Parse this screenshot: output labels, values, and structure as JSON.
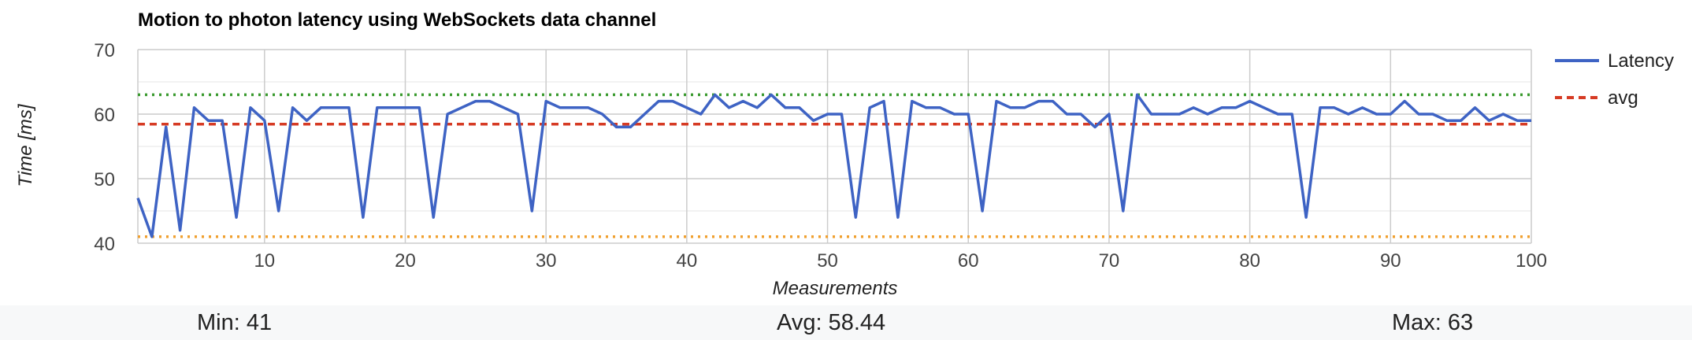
{
  "chart_data": {
    "type": "line",
    "title": "Motion to photon latency using WebSockets data channel",
    "xlabel": "Measurements",
    "ylabel": "Time [ms]",
    "xlim": [
      1,
      100
    ],
    "ylim": [
      40,
      70
    ],
    "x_ticks": [
      10,
      20,
      30,
      40,
      50,
      60,
      70,
      80,
      90,
      100
    ],
    "y_ticks": [
      40,
      50,
      60,
      70
    ],
    "grid": true,
    "legend_position": "right",
    "series": [
      {
        "name": "Latency",
        "color": "#3e63c4",
        "style": "solid",
        "values": [
          47,
          41,
          58,
          42,
          61,
          59,
          59,
          44,
          61,
          59,
          45,
          61,
          59,
          61,
          61,
          61,
          44,
          61,
          61,
          61,
          61,
          44,
          60,
          61,
          62,
          62,
          61,
          60,
          45,
          62,
          61,
          61,
          61,
          60,
          58,
          58,
          60,
          62,
          62,
          61,
          60,
          63,
          61,
          62,
          61,
          63,
          61,
          61,
          59,
          60,
          60,
          44,
          61,
          62,
          44,
          62,
          61,
          61,
          60,
          60,
          45,
          62,
          61,
          61,
          62,
          62,
          60,
          60,
          58,
          60,
          45,
          63,
          60,
          60,
          60,
          61,
          60,
          61,
          61,
          62,
          61,
          60,
          60,
          44,
          61,
          61,
          60,
          61,
          60,
          60,
          62,
          60,
          60,
          59,
          59,
          61,
          59,
          60,
          59,
          59
        ]
      },
      {
        "name": "avg",
        "color": "#d63b24",
        "style": "dashed",
        "constant": 58.44
      },
      {
        "color": "#3a9a2f",
        "style": "dotted",
        "constant": 63
      },
      {
        "color": "#f0a030",
        "style": "dotted",
        "constant": 41
      }
    ]
  },
  "stats": {
    "min_text": "Min: 41",
    "avg_text": "Avg: 58.44",
    "max_text": "Max: 63"
  }
}
